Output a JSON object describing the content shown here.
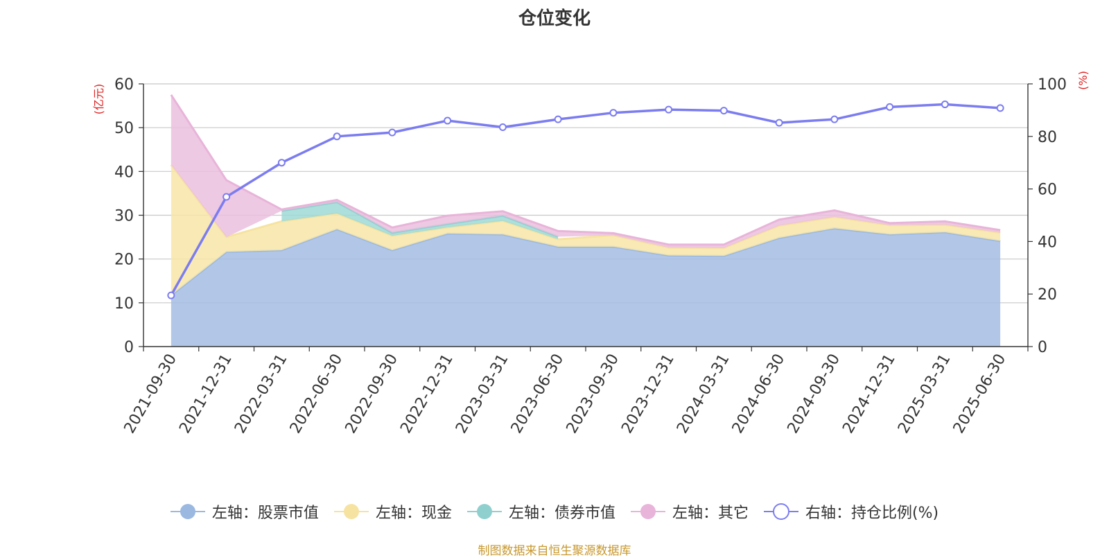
{
  "chart_data": {
    "type": "area",
    "title": "仓位变化",
    "y_left_unit": "(亿元)",
    "y_right_unit": "(%)",
    "ylim_left": [
      0,
      60
    ],
    "yticks_left": [
      0,
      10,
      20,
      30,
      40,
      50,
      60
    ],
    "ylim_right": [
      0,
      100
    ],
    "yticks_right": [
      0,
      20,
      40,
      60,
      80,
      100
    ],
    "grid": true,
    "stacked": true,
    "legend_position": "bottom",
    "categories": [
      "2021-09-30",
      "2021-12-31",
      "2022-03-31",
      "2022-06-30",
      "2022-09-30",
      "2022-12-31",
      "2023-03-31",
      "2023-06-30",
      "2023-09-30",
      "2023-12-31",
      "2024-03-31",
      "2024-06-30",
      "2024-09-30",
      "2024-12-31",
      "2025-03-31",
      "2025-06-30"
    ],
    "series": [
      {
        "name": "左轴：股票市值",
        "axis": "left",
        "kind": "area",
        "color": "#a5bde4",
        "line_color": "#9bb8e0",
        "values": [
          11.7,
          21.6,
          22.0,
          26.8,
          22.0,
          25.8,
          25.6,
          22.8,
          22.8,
          20.8,
          20.7,
          24.8,
          27.0,
          25.6,
          26.1,
          24.1
        ]
      },
      {
        "name": "左轴：现金",
        "axis": "left",
        "kind": "area",
        "color": "#f8e6a8",
        "line_color": "#f6e3a1",
        "values": [
          29.8,
          3.4,
          6.6,
          3.6,
          3.3,
          1.4,
          3.1,
          1.7,
          2.6,
          1.8,
          1.8,
          2.8,
          2.6,
          2.1,
          1.7,
          1.9
        ]
      },
      {
        "name": "左轴：债券市值",
        "axis": "left",
        "kind": "area",
        "color": "#9fd9d6",
        "line_color": "#8fd0cf",
        "values": [
          0,
          0,
          2.4,
          2.6,
          0.7,
          0.8,
          1.2,
          0.6,
          0,
          0,
          0,
          0,
          0,
          0,
          0,
          0
        ]
      },
      {
        "name": "左轴：其它",
        "axis": "left",
        "kind": "area",
        "color": "#ebbfde",
        "line_color": "#e8b4d9",
        "values": [
          16.0,
          13.0,
          0.3,
          0.5,
          1.2,
          1.9,
          1.0,
          1.3,
          0.5,
          0.7,
          0.8,
          1.4,
          1.5,
          0.5,
          0.8,
          0.6
        ]
      },
      {
        "name": "右轴：持仓比例(%)",
        "axis": "right",
        "kind": "line",
        "color": "#7b7cf0",
        "values": [
          19.5,
          57.0,
          70.0,
          80.0,
          81.5,
          86.0,
          83.5,
          86.5,
          89.0,
          90.2,
          89.8,
          85.2,
          86.5,
          91.2,
          92.2,
          90.8
        ]
      }
    ]
  },
  "footer": {
    "source": "制图数据来自恒生聚源数据库"
  }
}
